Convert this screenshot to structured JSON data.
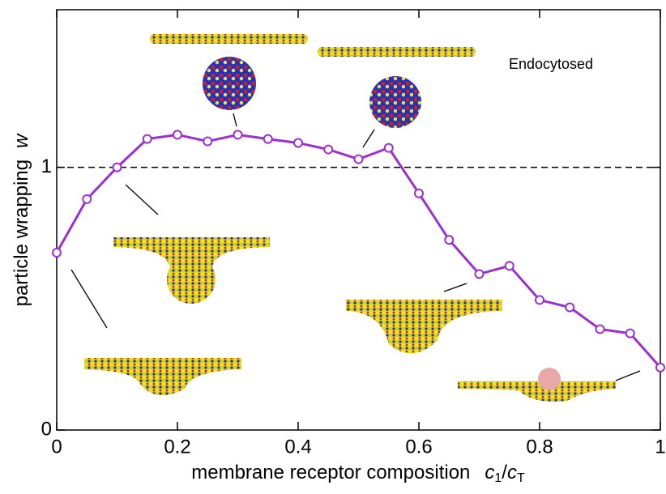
{
  "chart_data": {
    "type": "line",
    "x": [
      0,
      0.05,
      0.1,
      0.15,
      0.2,
      0.25,
      0.3,
      0.35,
      0.4,
      0.45,
      0.5,
      0.55,
      0.6,
      0.65,
      0.7,
      0.75,
      0.8,
      0.85,
      0.9,
      0.95,
      1
    ],
    "series": [
      {
        "color": "#9b30d0",
        "values": [
          0.675,
          0.879,
          1.0,
          1.108,
          1.124,
          1.099,
          1.124,
          1.108,
          1.093,
          1.068,
          1.031,
          1.074,
          0.901,
          0.724,
          0.594,
          0.625,
          0.495,
          0.467,
          0.384,
          0.368,
          0.238
        ]
      }
    ],
    "xlim": [
      0,
      1
    ],
    "xticks": [
      0,
      0.2,
      0.4,
      0.6,
      0.8,
      1
    ],
    "ylim": [
      0,
      1.6
    ],
    "yticks": [
      0,
      1
    ],
    "reference_line": 1,
    "x_label": [
      "membrane receptor composition",
      "c",
      "1",
      "/",
      "c",
      "T"
    ],
    "y_label": [
      "particle wrapping",
      "w"
    ],
    "annotation": "Endocytosed"
  }
}
